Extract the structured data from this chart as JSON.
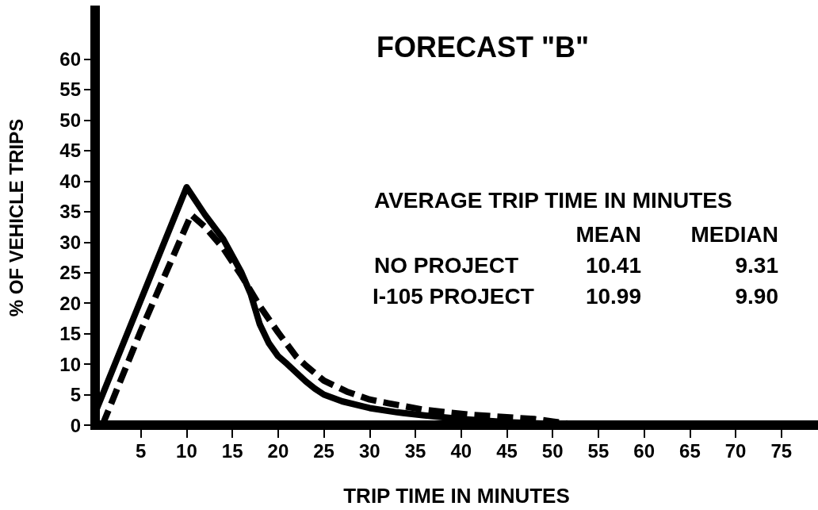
{
  "chart_data": {
    "type": "line",
    "title": "FORECAST \"B\"",
    "xlabel": "TRIP TIME IN MINUTES",
    "ylabel": "% OF VEHICLE TRIPS",
    "xlim": [
      0,
      79
    ],
    "ylim": [
      0,
      68
    ],
    "xticks": [
      5,
      10,
      15,
      20,
      25,
      30,
      35,
      40,
      45,
      50,
      55,
      60,
      65,
      70,
      75
    ],
    "yticks": [
      0,
      5,
      10,
      15,
      20,
      25,
      30,
      35,
      40,
      45,
      50,
      55,
      60
    ],
    "series": [
      {
        "color": "#000000",
        "line_style": "solid",
        "x": [
          0,
          5,
          10,
          12,
          14,
          16,
          17,
          18,
          19,
          20,
          21,
          22,
          23,
          24,
          25,
          27,
          30,
          33,
          36,
          40,
          45,
          50,
          53,
          79
        ],
        "values": [
          2,
          20.5,
          39,
          34.5,
          30.5,
          25,
          21.5,
          16.5,
          13.4,
          11.3,
          10,
          8.6,
          7.2,
          6,
          5,
          3.9,
          2.8,
          2.1,
          1.6,
          1,
          0.5,
          0.2,
          0,
          0
        ]
      },
      {
        "color": "#000000",
        "line_style": "dashed",
        "x": [
          0.8,
          5,
          10.5,
          12,
          14,
          16,
          18,
          20,
          22,
          23,
          25,
          27.5,
          30,
          32,
          36,
          41,
          45,
          48,
          50,
          53,
          79
        ],
        "values": [
          0,
          15.5,
          34.5,
          32.5,
          29,
          24.5,
          19.5,
          15.2,
          11.2,
          9.8,
          7.3,
          5.5,
          4.2,
          3.6,
          2.5,
          1.7,
          1.3,
          1,
          0.6,
          0,
          0
        ]
      }
    ],
    "annotations": [
      "AVERAGE TRIP TIME IN MINUTES",
      "MEAN",
      "MEDIAN",
      "NO PROJECT",
      "10.41",
      "9.31",
      "I-105 PROJECT",
      "10.99",
      "9.90"
    ]
  }
}
